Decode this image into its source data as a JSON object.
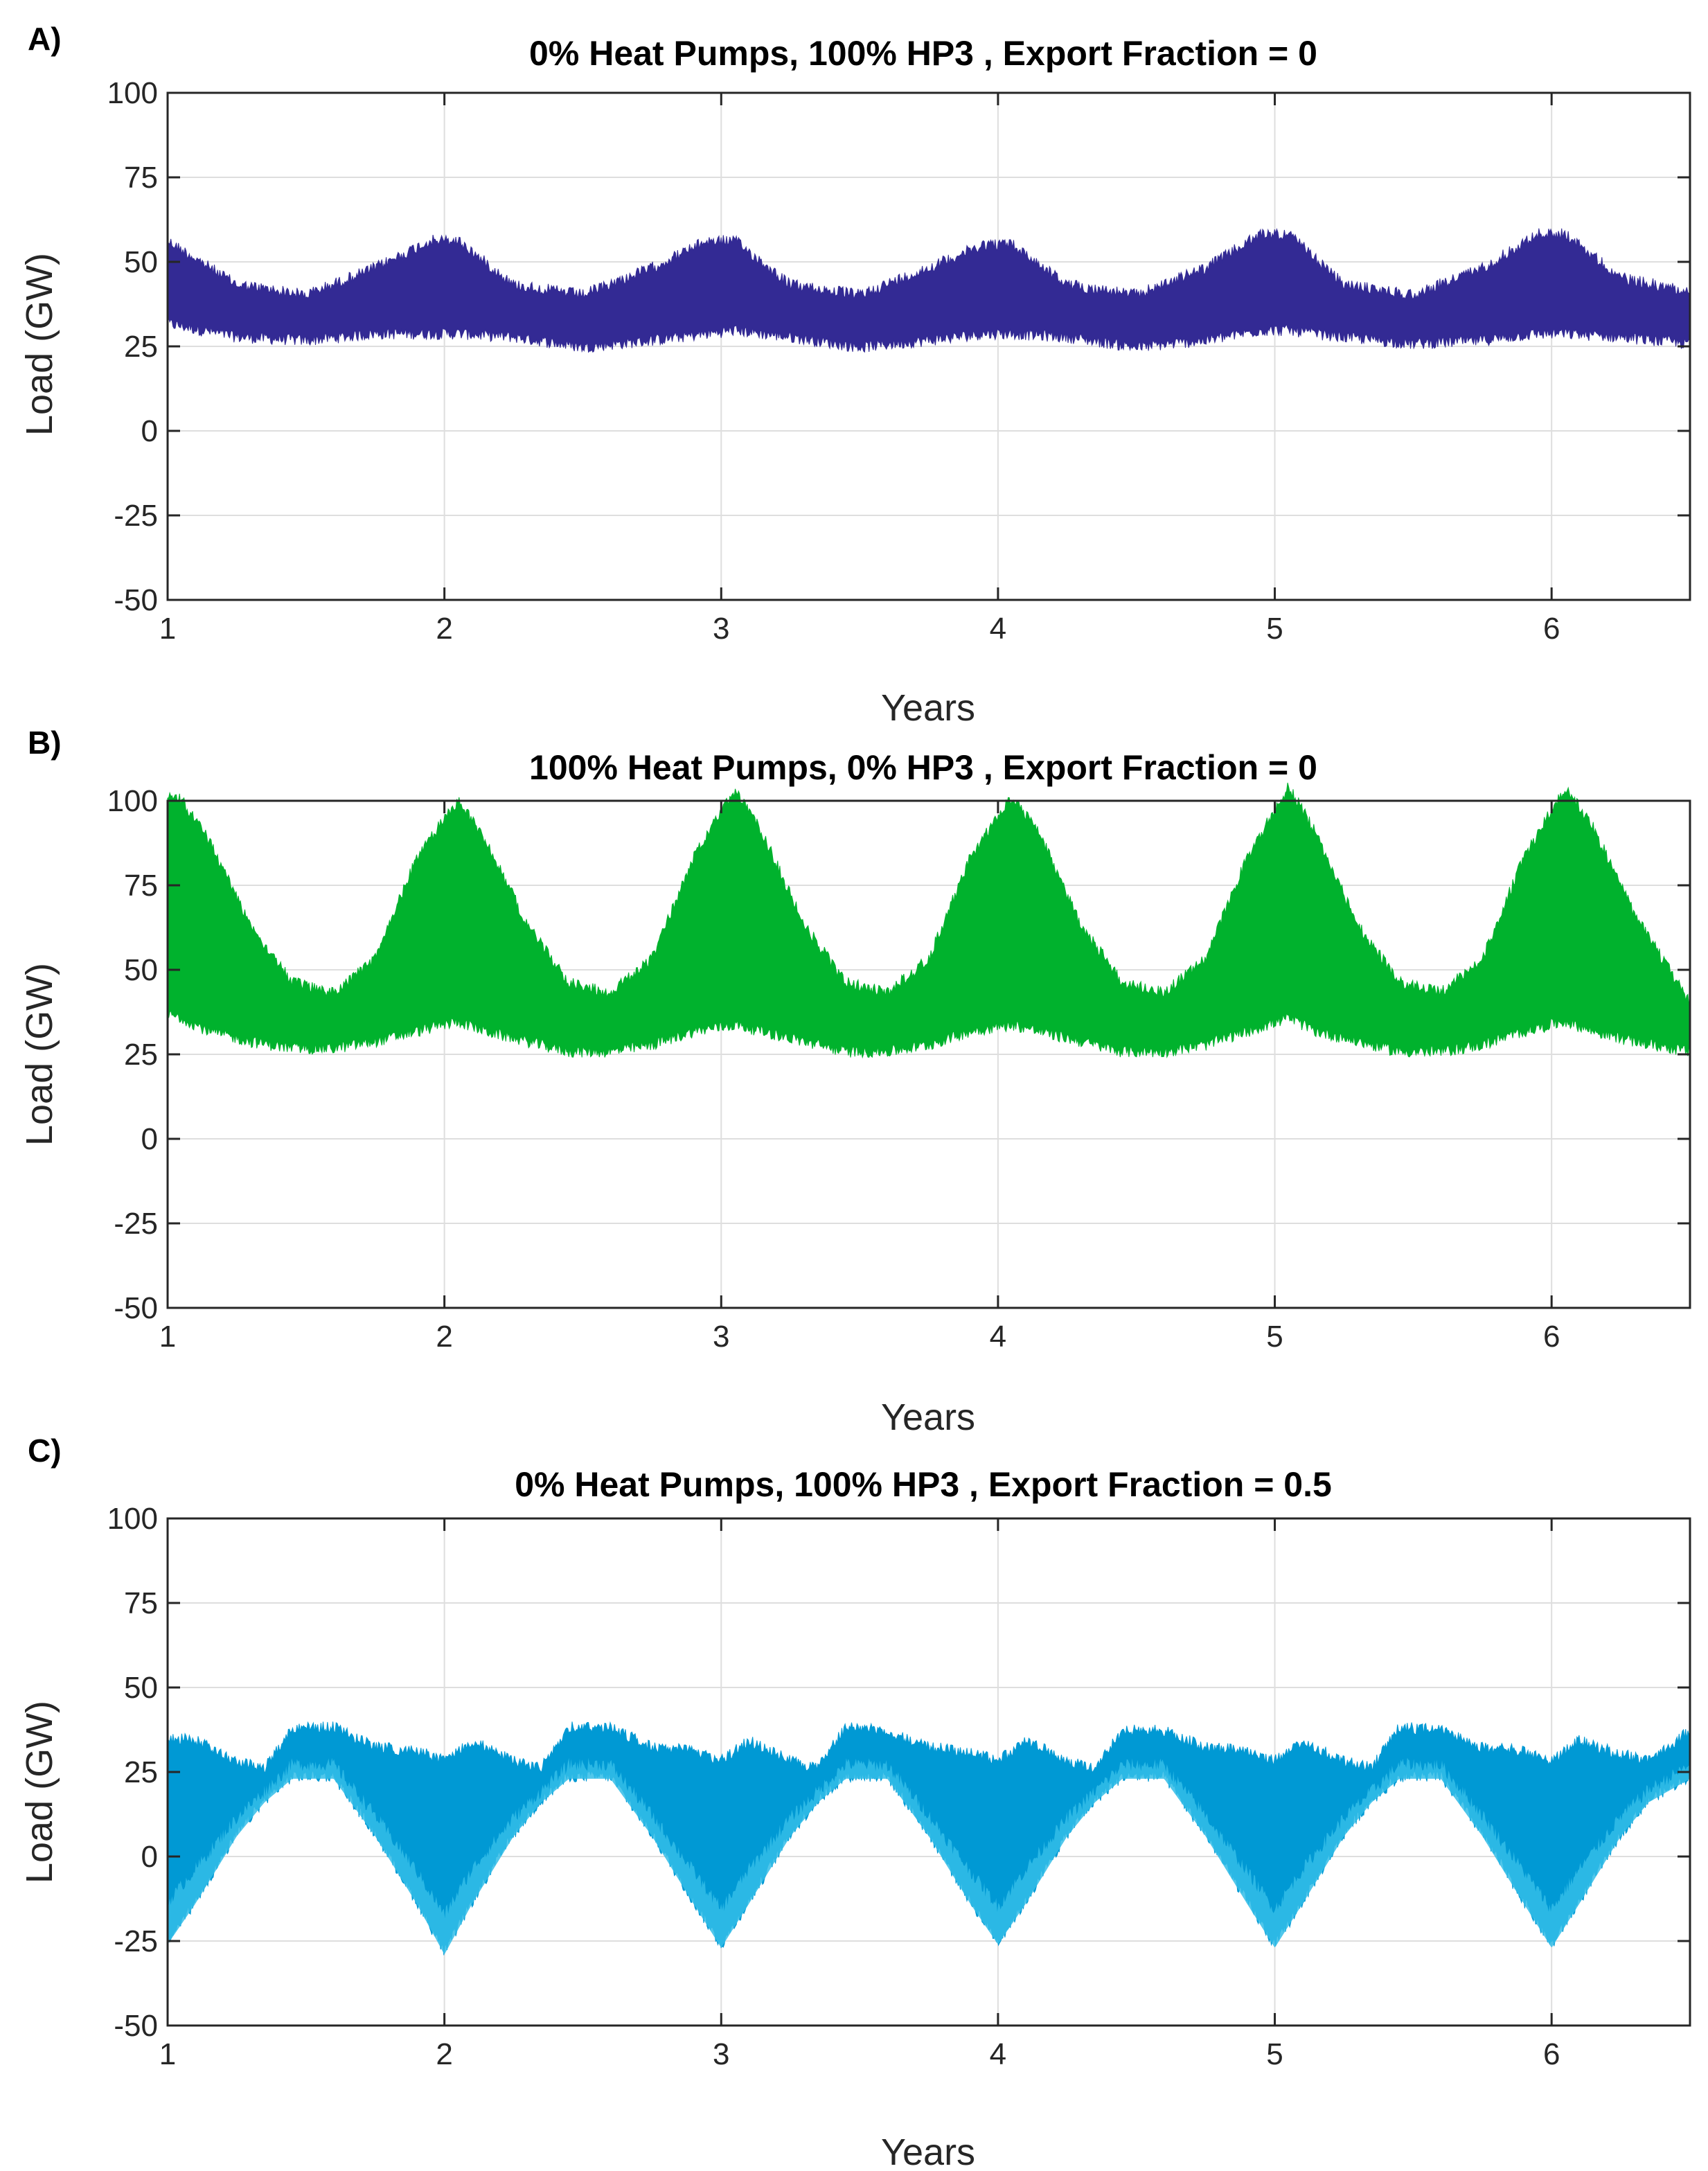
{
  "chart_data": [
    {
      "type": "area",
      "panel_label": "A)",
      "title": "0% Heat Pumps, 100% HP3 , Export Fraction = 0",
      "xlabel": "Years",
      "ylabel": "Load (GW)",
      "xlim": [
        1,
        6.5
      ],
      "ylim": [
        -50,
        100
      ],
      "xticks": [
        1,
        2,
        3,
        4,
        5,
        6
      ],
      "yticks": [
        100,
        75,
        50,
        25,
        0,
        -25,
        -50
      ],
      "grid": true,
      "series": [
        {
          "name": "Load",
          "color": "#332a94",
          "x": [
            1.0,
            1.25,
            1.5,
            1.75,
            1.95,
            2.05,
            2.25,
            2.5,
            2.75,
            2.95,
            3.05,
            3.25,
            3.5,
            3.75,
            3.95,
            4.05,
            4.25,
            4.5,
            4.75,
            4.95,
            5.05,
            5.25,
            5.5,
            5.75,
            5.95,
            6.05,
            6.25,
            6.5
          ],
          "upper": [
            58,
            45,
            42,
            50,
            58,
            58,
            45,
            42,
            50,
            58,
            58,
            45,
            42,
            50,
            57,
            57,
            45,
            42,
            50,
            60,
            60,
            45,
            42,
            50,
            60,
            60,
            47,
            43
          ],
          "lower": [
            30,
            26,
            25,
            27,
            27,
            27,
            26,
            23,
            25,
            27,
            28,
            26,
            23,
            25,
            27,
            27,
            26,
            23,
            25,
            28,
            28,
            26,
            24,
            25,
            27,
            27,
            26,
            24
          ]
        }
      ]
    },
    {
      "type": "area",
      "panel_label": "B)",
      "title": "100% Heat Pumps, 0% HP3 , Export Fraction = 0",
      "xlabel": "Years",
      "ylabel": "Load (GW)",
      "xlim": [
        1,
        6.5
      ],
      "ylim": [
        -50,
        100
      ],
      "xticks": [
        1,
        2,
        3,
        4,
        5,
        6
      ],
      "yticks": [
        100,
        75,
        50,
        25,
        0,
        -25,
        -50
      ],
      "grid": true,
      "series": [
        {
          "name": "Load",
          "color": "#00b22d",
          "x": [
            1.0,
            1.05,
            1.15,
            1.3,
            1.45,
            1.6,
            1.75,
            1.9,
            2.05,
            2.15,
            2.3,
            2.45,
            2.6,
            2.75,
            2.9,
            3.05,
            3.15,
            3.3,
            3.45,
            3.6,
            3.75,
            3.9,
            4.05,
            4.15,
            4.3,
            4.45,
            4.6,
            4.75,
            4.9,
            5.05,
            5.15,
            5.3,
            5.45,
            5.6,
            5.75,
            5.9,
            6.05,
            6.15,
            6.3,
            6.5
          ],
          "upper": [
            103,
            102,
            90,
            65,
            48,
            45,
            55,
            85,
            102,
            90,
            65,
            48,
            45,
            55,
            85,
            105,
            92,
            65,
            48,
            45,
            55,
            85,
            103,
            92,
            65,
            48,
            45,
            55,
            85,
            106,
            92,
            65,
            48,
            45,
            55,
            85,
            106,
            94,
            68,
            42
          ],
          "lower": [
            35,
            34,
            30,
            27,
            25,
            25,
            27,
            30,
            33,
            30,
            27,
            24,
            24,
            26,
            30,
            32,
            30,
            27,
            24,
            24,
            26,
            30,
            32,
            30,
            27,
            24,
            24,
            26,
            30,
            34,
            30,
            27,
            24,
            24,
            26,
            30,
            33,
            30,
            27,
            24
          ]
        }
      ]
    },
    {
      "type": "area",
      "panel_label": "C)",
      "title": "0% Heat Pumps, 100% HP3 , Export Fraction = 0.5",
      "xlabel": "Years",
      "ylabel": "Load (GW)",
      "xlim": [
        1,
        6.5
      ],
      "ylim": [
        -50,
        100
      ],
      "xticks": [
        1,
        2,
        3,
        4,
        5,
        6
      ],
      "yticks": [
        100,
        75,
        50,
        25,
        0,
        -25,
        -50
      ],
      "grid": true,
      "series": [
        {
          "name": "Load",
          "color": "#0099d4",
          "x": [
            1.0,
            1.1,
            1.25,
            1.35,
            1.45,
            1.6,
            1.75,
            1.9,
            2.0,
            2.1,
            2.25,
            2.35,
            2.45,
            2.6,
            2.75,
            2.9,
            3.0,
            3.1,
            3.25,
            3.35,
            3.45,
            3.6,
            3.75,
            3.9,
            4.0,
            4.1,
            4.25,
            4.35,
            4.45,
            4.6,
            4.75,
            4.9,
            5.0,
            5.1,
            5.25,
            5.35,
            5.45,
            5.6,
            5.75,
            5.9,
            6.0,
            6.1,
            6.25,
            6.35,
            6.5
          ],
          "upper": [
            37,
            36,
            30,
            28,
            40,
            40,
            34,
            33,
            30,
            36,
            30,
            28,
            40,
            40,
            34,
            33,
            30,
            36,
            30,
            28,
            40,
            39,
            34,
            33,
            30,
            36,
            30,
            28,
            39,
            39,
            34,
            33,
            30,
            36,
            30,
            28,
            40,
            39,
            34,
            33,
            30,
            36,
            32,
            30,
            39
          ],
          "lower": [
            -27,
            -15,
            5,
            15,
            22,
            22,
            5,
            -15,
            -30,
            -15,
            5,
            15,
            22,
            22,
            5,
            -15,
            -28,
            -15,
            5,
            15,
            22,
            22,
            5,
            -15,
            -27,
            -15,
            5,
            15,
            22,
            22,
            5,
            -15,
            -28,
            -15,
            5,
            15,
            22,
            22,
            5,
            -15,
            -28,
            -15,
            5,
            15,
            22
          ],
          "mid_band_color": "#33bde8"
        }
      ]
    }
  ]
}
